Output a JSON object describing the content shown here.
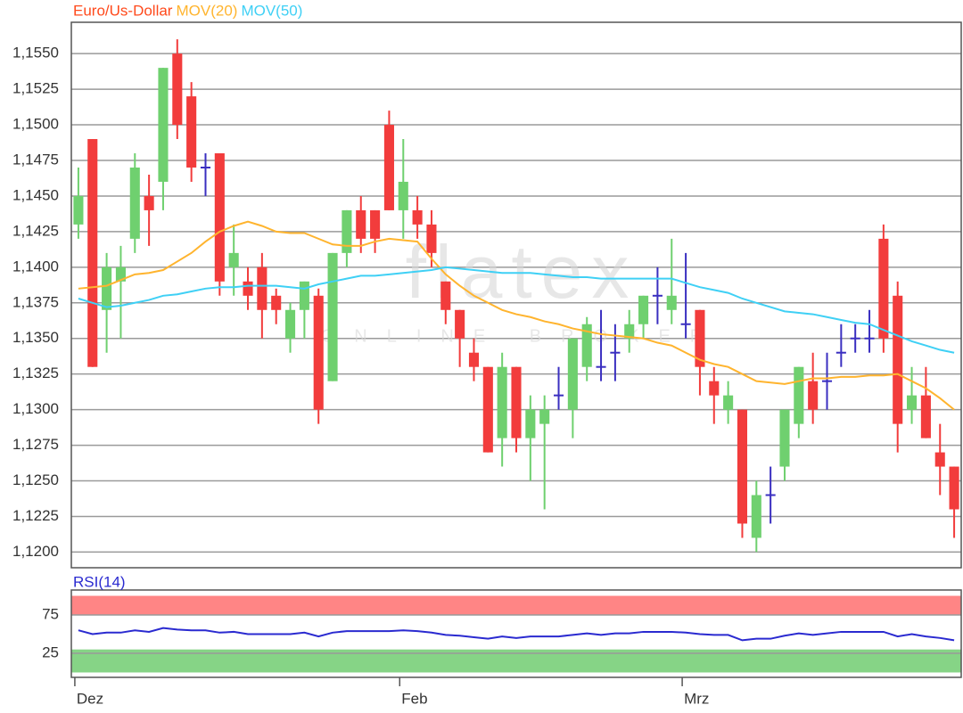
{
  "chart_data": [
    {
      "type": "candlestick",
      "categories": [
        "Dez",
        null,
        null,
        null,
        null,
        null,
        null,
        null,
        null,
        null,
        null,
        null,
        null,
        null,
        null,
        null,
        null,
        null,
        null,
        null,
        null,
        null,
        null,
        "Feb",
        null,
        null,
        null,
        null,
        null,
        null,
        null,
        null,
        null,
        null,
        null,
        null,
        null,
        null,
        null,
        null,
        null,
        null,
        null,
        "Mrz",
        null,
        null,
        null,
        null,
        null,
        null,
        null,
        null,
        null,
        null,
        null,
        null,
        null,
        null,
        null,
        null,
        null,
        null,
        null
      ],
      "series": [
        {
          "name": "Euro/Us-Dollar",
          "color": "#ff4a1c",
          "open": [
            1.143,
            1.149,
            1.137,
            1.139,
            1.142,
            1.145,
            1.146,
            1.155,
            1.152,
            1.147,
            1.148,
            1.14,
            1.139,
            1.14,
            1.138,
            1.135,
            1.137,
            1.138,
            1.132,
            1.141,
            1.144,
            1.144,
            1.15,
            1.144,
            1.144,
            1.143,
            1.139,
            1.137,
            1.134,
            1.133,
            1.128,
            1.133,
            1.128,
            1.129,
            1.131,
            1.13,
            1.133,
            1.133,
            1.134,
            1.135,
            1.136,
            1.138,
            1.137,
            1.136,
            1.137,
            1.132,
            1.13,
            1.13,
            1.121,
            1.124,
            1.126,
            1.129,
            1.132,
            1.132,
            1.134,
            1.135,
            1.135,
            1.142,
            1.138,
            1.13,
            1.131,
            1.127,
            1.126
          ],
          "high": [
            1.147,
            1.149,
            1.141,
            1.1415,
            1.148,
            1.1465,
            1.154,
            1.156,
            1.153,
            1.148,
            1.148,
            1.143,
            1.14,
            1.141,
            1.1385,
            1.1375,
            1.139,
            1.1385,
            1.141,
            1.144,
            1.145,
            1.144,
            1.151,
            1.149,
            1.145,
            1.144,
            1.139,
            1.137,
            1.135,
            1.133,
            1.134,
            1.133,
            1.131,
            1.131,
            1.133,
            1.135,
            1.1365,
            1.137,
            1.136,
            1.137,
            1.138,
            1.14,
            1.142,
            1.141,
            1.137,
            1.133,
            1.132,
            1.13,
            1.125,
            1.126,
            1.13,
            1.133,
            1.134,
            1.134,
            1.136,
            1.136,
            1.137,
            1.143,
            1.139,
            1.133,
            1.133,
            1.129,
            1.126
          ],
          "low": [
            1.142,
            1.133,
            1.134,
            1.135,
            1.141,
            1.1415,
            1.144,
            1.149,
            1.146,
            1.145,
            1.138,
            1.138,
            1.137,
            1.135,
            1.136,
            1.134,
            1.135,
            1.129,
            1.132,
            1.14,
            1.141,
            1.141,
            1.144,
            1.142,
            1.142,
            1.14,
            1.136,
            1.133,
            1.132,
            1.127,
            1.126,
            1.127,
            1.125,
            1.123,
            1.13,
            1.128,
            1.132,
            1.132,
            1.132,
            1.134,
            1.135,
            1.136,
            1.136,
            1.135,
            1.131,
            1.129,
            1.129,
            1.121,
            1.12,
            1.122,
            1.125,
            1.128,
            1.129,
            1.13,
            1.133,
            1.134,
            1.134,
            1.134,
            1.127,
            1.129,
            1.128,
            1.124,
            1.121
          ],
          "close": [
            1.145,
            1.133,
            1.14,
            1.14,
            1.147,
            1.144,
            1.154,
            1.15,
            1.147,
            1.147,
            1.139,
            1.141,
            1.138,
            1.137,
            1.137,
            1.137,
            1.139,
            1.13,
            1.141,
            1.144,
            1.142,
            1.142,
            1.144,
            1.146,
            1.143,
            1.141,
            1.137,
            1.135,
            1.133,
            1.127,
            1.133,
            1.128,
            1.13,
            1.13,
            1.131,
            1.135,
            1.136,
            1.133,
            1.134,
            1.136,
            1.138,
            1.138,
            1.138,
            1.136,
            1.133,
            1.131,
            1.131,
            1.122,
            1.124,
            1.124,
            1.13,
            1.133,
            1.13,
            1.132,
            1.134,
            1.135,
            1.135,
            1.135,
            1.129,
            1.131,
            1.128,
            1.126,
            1.123
          ]
        },
        {
          "name": "MOV(20)",
          "color": "#ffb42e",
          "values": [
            1.1385,
            1.1386,
            1.1387,
            1.1391,
            1.1395,
            1.1396,
            1.1398,
            1.1404,
            1.141,
            1.1418,
            1.1425,
            1.1429,
            1.1432,
            1.1429,
            1.1425,
            1.1424,
            1.1424,
            1.142,
            1.1416,
            1.1415,
            1.1415,
            1.1418,
            1.142,
            1.1419,
            1.1418,
            1.1406,
            1.1395,
            1.1387,
            1.138,
            1.1375,
            1.137,
            1.1367,
            1.1365,
            1.1362,
            1.136,
            1.1357,
            1.1355,
            1.1353,
            1.1352,
            1.1351,
            1.135,
            1.1347,
            1.1345,
            1.134,
            1.1335,
            1.1332,
            1.133,
            1.1325,
            1.132,
            1.1319,
            1.1318,
            1.132,
            1.1322,
            1.1322,
            1.1323,
            1.1323,
            1.1324,
            1.1324,
            1.1325,
            1.132,
            1.1315,
            1.1308,
            1.13
          ]
        },
        {
          "name": "MOV(50)",
          "color": "#3fd0f5",
          "values": [
            1.1378,
            1.1375,
            1.1372,
            1.1373,
            1.1375,
            1.1377,
            1.138,
            1.1381,
            1.1383,
            1.1385,
            1.1386,
            1.1386,
            1.1387,
            1.1387,
            1.1387,
            1.1386,
            1.1385,
            1.1388,
            1.139,
            1.1392,
            1.1394,
            1.1394,
            1.1395,
            1.1396,
            1.1397,
            1.1398,
            1.14,
            1.1399,
            1.1398,
            1.1397,
            1.1396,
            1.1396,
            1.1396,
            1.1395,
            1.1394,
            1.1393,
            1.1393,
            1.1392,
            1.1392,
            1.1392,
            1.1392,
            1.1392,
            1.1392,
            1.1389,
            1.1386,
            1.1384,
            1.1382,
            1.1378,
            1.1375,
            1.1372,
            1.1369,
            1.1368,
            1.1367,
            1.1365,
            1.1363,
            1.1361,
            1.136,
            1.1356,
            1.1352,
            1.1348,
            1.1345,
            1.1342,
            1.134
          ]
        }
      ],
      "up_color": "#6fd06f",
      "down_color": "#f23c3c",
      "doji_color": "#3a2fc0",
      "ylim": [
        1.1189,
        1.1572
      ],
      "yticks": [
        {
          "value": 1.12,
          "label": "1,1200"
        },
        {
          "value": 1.1225,
          "label": "1,1225"
        },
        {
          "value": 1.125,
          "label": "1,1250"
        },
        {
          "value": 1.1275,
          "label": "1,1275"
        },
        {
          "value": 1.13,
          "label": "1,1300"
        },
        {
          "value": 1.1325,
          "label": "1,1325"
        },
        {
          "value": 1.135,
          "label": "1,1350"
        },
        {
          "value": 1.1375,
          "label": "1,1375"
        },
        {
          "value": 1.14,
          "label": "1,1400"
        },
        {
          "value": 1.1425,
          "label": "1,1425"
        },
        {
          "value": 1.145,
          "label": "1,1450"
        },
        {
          "value": 1.1475,
          "label": "1,1475"
        },
        {
          "value": 1.15,
          "label": "1,1500"
        },
        {
          "value": 1.1525,
          "label": "1,1525"
        },
        {
          "value": 1.155,
          "label": "1,1550"
        }
      ],
      "grid": true,
      "watermark": "flatex",
      "watermark_subtitle": "ONLINE BROKER"
    },
    {
      "type": "line",
      "series": [
        {
          "name": "RSI(14)",
          "color": "#2a2ad0",
          "values": [
            55,
            50,
            52,
            52,
            55,
            53,
            58,
            56,
            55,
            55,
            52,
            53,
            50,
            50,
            50,
            50,
            52,
            47,
            52,
            54,
            54,
            54,
            54,
            55,
            54,
            52,
            49,
            48,
            46,
            44,
            47,
            45,
            47,
            47,
            47,
            49,
            51,
            49,
            51,
            51,
            53,
            53,
            53,
            52,
            50,
            49,
            49,
            42,
            44,
            44,
            48,
            51,
            49,
            51,
            53,
            53,
            53,
            53,
            47,
            50,
            47,
            45,
            42
          ]
        }
      ],
      "ylim": [
        -6.4,
        107.6
      ],
      "yticks": [
        25,
        75
      ],
      "bands": [
        {
          "from": 75,
          "to": 100,
          "color": "#ff8585"
        },
        {
          "from": 0,
          "to": 30,
          "color": "#86d486"
        }
      ],
      "grid": true
    }
  ]
}
